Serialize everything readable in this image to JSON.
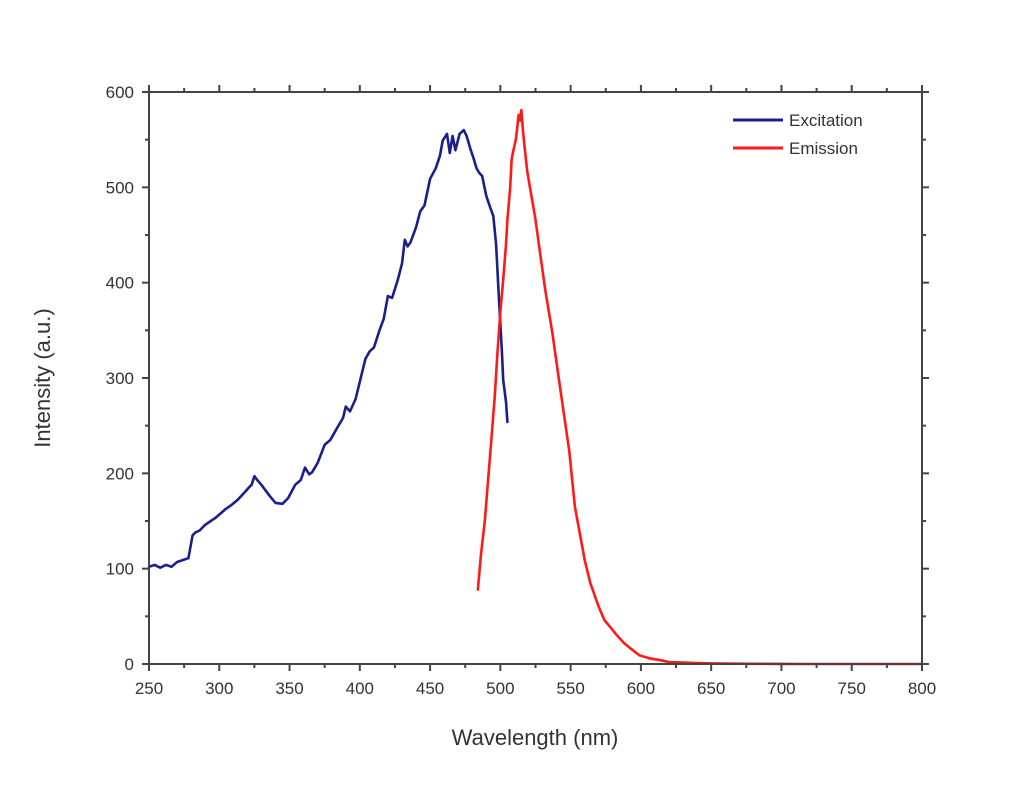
{
  "chart_data": {
    "type": "line",
    "title": "",
    "xlabel": "Wavelength (nm)",
    "ylabel": "Intensity (a.u.)",
    "xlim": [
      250,
      800
    ],
    "ylim": [
      0,
      600
    ],
    "x_ticks": [
      250,
      300,
      350,
      400,
      450,
      500,
      550,
      600,
      650,
      700,
      750,
      800
    ],
    "x_tick_labels": [
      "250",
      "300",
      "350",
      "400",
      "450",
      "500",
      "550",
      "600",
      "650",
      "700",
      "750",
      "800"
    ],
    "y_ticks": [
      0,
      100,
      200,
      300,
      400,
      500,
      600
    ],
    "y_tick_labels": [
      "0",
      "100",
      "200",
      "300",
      "400",
      "500",
      "600"
    ],
    "grid": false,
    "legend_position": "top-right",
    "series": [
      {
        "name": "Excitation",
        "color": "#1a1f8c",
        "x": [
          250,
          254,
          258,
          262,
          266,
          270,
          274,
          278,
          281,
          283,
          286,
          290,
          294,
          297,
          301,
          304,
          308,
          313,
          318,
          321,
          323,
          325,
          327,
          330,
          332,
          336,
          340,
          345,
          349,
          354,
          358,
          361,
          364,
          366,
          370,
          375,
          379,
          384,
          388,
          390,
          393,
          397,
          400,
          404,
          407,
          410,
          414,
          417,
          420,
          423,
          427,
          430,
          432,
          434,
          436,
          440,
          443,
          446,
          450,
          454,
          457,
          459,
          462,
          464,
          466,
          468,
          471,
          474,
          476,
          479,
          481,
          483,
          485,
          487,
          490,
          493,
          495,
          497,
          499,
          501,
          502,
          504,
          505
        ],
        "values": [
          102,
          104,
          101,
          104,
          102,
          107,
          109,
          111,
          135,
          138,
          140,
          146,
          150,
          153,
          158,
          162,
          166,
          172,
          180,
          185,
          188,
          197,
          193,
          188,
          184,
          176,
          169,
          168,
          174,
          188,
          193,
          206,
          199,
          201,
          211,
          230,
          235,
          248,
          258,
          270,
          265,
          278,
          296,
          320,
          328,
          332,
          350,
          362,
          386,
          384,
          403,
          420,
          445,
          438,
          442,
          458,
          475,
          481,
          509,
          520,
          533,
          549,
          556,
          536,
          554,
          539,
          556,
          560,
          554,
          539,
          530,
          520,
          515,
          512,
          491,
          478,
          470,
          440,
          382,
          330,
          298,
          275,
          254
        ]
      },
      {
        "name": "Emission",
        "color": "#ff1a1a",
        "x": [
          484,
          486,
          489,
          491,
          493,
          496,
          498,
          500,
          502,
          504,
          505,
          507,
          508,
          509,
          511,
          512,
          513,
          514,
          515,
          516,
          517,
          519,
          521,
          522,
          525,
          528,
          532,
          537,
          542,
          549,
          553,
          560,
          564,
          570,
          574,
          578,
          583,
          588,
          592,
          599,
          606,
          614,
          620,
          630,
          640,
          650,
          660,
          680,
          700,
          720,
          740,
          760,
          780,
          800
        ],
        "values": [
          78,
          112,
          151,
          188,
          224,
          280,
          329,
          370,
          403,
          440,
          466,
          500,
          529,
          537,
          550,
          562,
          576,
          570,
          581,
          560,
          545,
          518,
          500,
          492,
          466,
          434,
          392,
          347,
          295,
          224,
          165,
          109,
          85,
          60,
          46,
          39,
          30,
          22,
          17,
          9,
          6,
          4,
          2,
          1.5,
          1,
          0.6,
          0.4,
          0.2,
          0.1,
          0.05,
          0,
          0,
          0,
          0
        ]
      }
    ]
  }
}
